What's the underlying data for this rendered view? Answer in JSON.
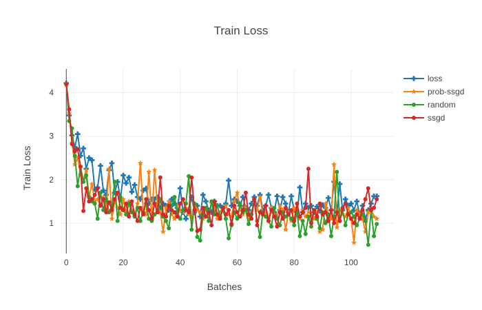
{
  "chart_data": {
    "type": "line",
    "title": "Train Loss",
    "xlabel": "Batches",
    "ylabel": "Train Loss",
    "xlim": [
      -2,
      115
    ],
    "ylim": [
      0.3,
      4.55
    ],
    "xticks": [
      0,
      20,
      40,
      60,
      80,
      100
    ],
    "yticks": [
      1,
      2,
      3,
      4
    ],
    "legend_position": "top-right",
    "grid": true,
    "series": [
      {
        "name": "loss",
        "color": "#1f77b4",
        "marker": "cross",
        "values": [
          4.22,
          3.48,
          3.02,
          2.75,
          3.05,
          2.55,
          2.72,
          2.25,
          2.5,
          2.45,
          1.78,
          1.82,
          2.32,
          1.75,
          1.65,
          2.22,
          2.38,
          1.7,
          1.95,
          1.55,
          2.1,
          1.92,
          2.05,
          1.72,
          1.88,
          1.6,
          1.55,
          1.75,
          1.8,
          1.45,
          1.55,
          1.55,
          1.6,
          1.35,
          1.45,
          1.4,
          1.3,
          1.55,
          1.45,
          1.35,
          1.8,
          1.25,
          1.1,
          1.3,
          1.6,
          1.25,
          1.4,
          1.15,
          1.65,
          1.5,
          1.3,
          1.25,
          1.5,
          1.4,
          1.4,
          1.35,
          1.45,
          1.98,
          1.4,
          1.55,
          1.5,
          1.4,
          1.6,
          1.35,
          1.3,
          1.45,
          1.6,
          1.4,
          1.65,
          1.3,
          1.4,
          1.65,
          1.35,
          1.25,
          1.62,
          1.3,
          1.6,
          1.45,
          1.25,
          1.62,
          1.3,
          1.2,
          1.82,
          1.25,
          1.45,
          1.35,
          1.4,
          1.25,
          1.38,
          1.28,
          1.42,
          1.35,
          1.58,
          1.3,
          1.95,
          1.25,
          1.9,
          1.3,
          1.55,
          1.4,
          1.45,
          1.3,
          1.5,
          1.2,
          1.4,
          1.1,
          1.3,
          1.45,
          1.62,
          1.62
        ]
      },
      {
        "name": "prob-ssgd",
        "color": "#ff7f0e",
        "marker": "star",
        "values": [
          4.18,
          3.52,
          2.85,
          2.35,
          2.5,
          2.1,
          2.0,
          2.22,
          1.6,
          1.9,
          1.5,
          1.55,
          1.4,
          1.6,
          1.3,
          2.25,
          1.1,
          1.5,
          1.35,
          1.2,
          1.55,
          1.25,
          1.5,
          1.3,
          1.15,
          1.45,
          2.38,
          1.3,
          1.2,
          2.18,
          1.1,
          2.22,
          1.4,
          1.25,
          0.8,
          1.35,
          1.5,
          1.2,
          1.1,
          1.4,
          1.3,
          1.25,
          1.35,
          1.2,
          1.1,
          1.45,
          1.3,
          1.25,
          1.1,
          1.35,
          1.2,
          1.45,
          1.3,
          1.1,
          1.25,
          1.35,
          1.4,
          1.2,
          1.15,
          1.5,
          1.7,
          1.3,
          1.2,
          1.35,
          1.1,
          1.25,
          1.45,
          1.3,
          1.6,
          1.2,
          1.25,
          1.1,
          1.35,
          1.2,
          1.15,
          1.4,
          1.3,
          0.85,
          1.25,
          1.05,
          1.35,
          1.2,
          1.1,
          1.3,
          1.15,
          1.25,
          1.2,
          1.1,
          1.25,
          0.8,
          0.85,
          1.45,
          1.2,
          1.1,
          2.35,
          0.9,
          1.3,
          1.2,
          1.15,
          1.35,
          1.1,
          0.55,
          1.3,
          1.2,
          1.1,
          0.8,
          1.25,
          1.35,
          1.15,
          1.1
        ]
      },
      {
        "name": "random",
        "color": "#2ca02c",
        "marker": "circle",
        "values": [
          4.2,
          3.35,
          3.18,
          2.55,
          1.85,
          2.3,
          1.95,
          2.1,
          1.6,
          1.5,
          1.45,
          1.1,
          1.7,
          1.3,
          1.55,
          1.25,
          1.4,
          1.95,
          1.05,
          1.6,
          1.3,
          1.2,
          1.45,
          1.25,
          1.15,
          1.35,
          1.05,
          1.25,
          1.45,
          1.1,
          1.05,
          1.2,
          1.3,
          1.55,
          1.15,
          1.05,
          0.88,
          1.4,
          1.6,
          1.25,
          1.1,
          1.3,
          1.45,
          2.08,
          0.85,
          1.45,
          0.68,
          0.6,
          1.2,
          1.35,
          1.05,
          1.5,
          1.2,
          1.4,
          1.15,
          1.3,
          1.1,
          0.65,
          0.95,
          1.25,
          1.1,
          1.45,
          1.25,
          1.3,
          0.98,
          1.2,
          1.55,
          1.05,
          0.68,
          1.25,
          1.15,
          1.05,
          0.92,
          1.35,
          1.1,
          0.95,
          1.25,
          1.15,
          1.2,
          1.1,
          0.95,
          1.25,
          0.7,
          1.05,
          0.75,
          1.15,
          0.92,
          1.3,
          1.1,
          0.88,
          1.25,
          1.0,
          1.2,
          0.7,
          1.15,
          2.18,
          1.05,
          1.3,
          0.95,
          1.2,
          1.25,
          1.15,
          0.95,
          1.1,
          1.2,
          1.05,
          0.5,
          1.3,
          0.7,
          0.98
        ]
      },
      {
        "name": "ssgd",
        "color": "#d62728",
        "marker": "circle",
        "values": [
          4.2,
          3.62,
          2.82,
          2.65,
          2.7,
          2.3,
          1.28,
          1.8,
          1.5,
          1.55,
          1.65,
          1.8,
          1.4,
          1.55,
          1.25,
          1.48,
          1.3,
          1.55,
          1.7,
          1.35,
          1.3,
          1.45,
          1.15,
          1.5,
          1.2,
          1.05,
          1.35,
          1.2,
          1.55,
          1.3,
          1.1,
          1.45,
          1.25,
          2.05,
          1.2,
          1.15,
          1.4,
          1.3,
          1.25,
          1.15,
          1.45,
          1.55,
          1.3,
          1.25,
          2.05,
          1.3,
          0.82,
          0.85,
          1.35,
          1.15,
          1.25,
          0.95,
          1.5,
          1.2,
          1.1,
          1.35,
          1.2,
          1.3,
          0.98,
          1.4,
          1.25,
          1.15,
          1.3,
          1.7,
          1.2,
          1.1,
          1.55,
          0.95,
          1.25,
          1.2,
          1.4,
          1.05,
          1.3,
          1.15,
          0.92,
          1.25,
          1.1,
          1.35,
          1.2,
          1.3,
          1.05,
          1.45,
          1.15,
          1.25,
          1.35,
          2.25,
          1.0,
          1.3,
          1.15,
          1.45,
          1.2,
          1.25,
          1.05,
          1.3,
          1.0,
          1.25,
          1.05,
          1.35,
          1.45,
          1.2,
          1.1,
          1.0,
          1.2,
          1.1,
          1.3,
          1.55,
          1.8,
          1.3,
          1.35,
          1.55
        ]
      }
    ]
  }
}
